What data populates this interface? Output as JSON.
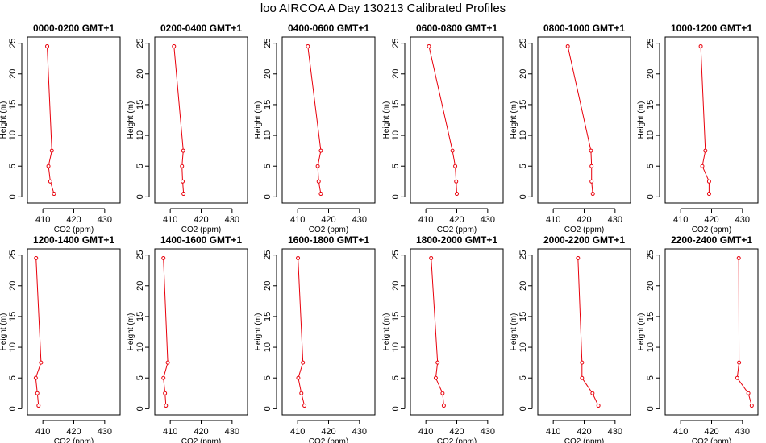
{
  "title": "loo AIRCOA A  Day 130213  Calibrated Profiles",
  "chart_data": {
    "type": "line",
    "title": "loo AIRCOA A  Day 130213  Calibrated Profiles",
    "xlabel": "CO2 (ppm)",
    "ylabel": "Height (m)",
    "xlim": [
      405,
      435
    ],
    "ylim": [
      -1,
      26
    ],
    "x_ticks": [
      410,
      420,
      430
    ],
    "y_ticks": [
      0,
      5,
      10,
      15,
      20,
      25
    ],
    "line_color": "#e8000b",
    "grid": false,
    "panels": [
      {
        "title": "0000-0200 GMT+1",
        "points": [
          {
            "co2": 411.4,
            "height": 24.5
          },
          {
            "co2": 412.9,
            "height": 7.5
          },
          {
            "co2": 411.8,
            "height": 5.0
          },
          {
            "co2": 412.4,
            "height": 2.5
          },
          {
            "co2": 413.6,
            "height": 0.5
          }
        ]
      },
      {
        "title": "0200-0400 GMT+1",
        "points": [
          {
            "co2": 411.2,
            "height": 24.5
          },
          {
            "co2": 414.2,
            "height": 7.5
          },
          {
            "co2": 413.8,
            "height": 5.0
          },
          {
            "co2": 414.0,
            "height": 2.5
          },
          {
            "co2": 414.3,
            "height": 0.5
          }
        ]
      },
      {
        "title": "0400-0600 GMT+1",
        "points": [
          {
            "co2": 413.3,
            "height": 24.5
          },
          {
            "co2": 417.5,
            "height": 7.5
          },
          {
            "co2": 416.5,
            "height": 5.0
          },
          {
            "co2": 416.8,
            "height": 2.5
          },
          {
            "co2": 417.5,
            "height": 0.5
          }
        ]
      },
      {
        "title": "0600-0800 GMT+1",
        "points": [
          {
            "co2": 411.0,
            "height": 24.5
          },
          {
            "co2": 418.6,
            "height": 7.5
          },
          {
            "co2": 419.5,
            "height": 5.0
          },
          {
            "co2": 419.8,
            "height": 2.5
          },
          {
            "co2": 420.0,
            "height": 0.5
          }
        ]
      },
      {
        "title": "0800-1000 GMT+1",
        "points": [
          {
            "co2": 414.7,
            "height": 24.5
          },
          {
            "co2": 422.2,
            "height": 7.5
          },
          {
            "co2": 422.4,
            "height": 5.0
          },
          {
            "co2": 422.4,
            "height": 2.5
          },
          {
            "co2": 422.8,
            "height": 0.5
          }
        ]
      },
      {
        "title": "1000-1200 GMT+1",
        "points": [
          {
            "co2": 416.5,
            "height": 24.5
          },
          {
            "co2": 418.0,
            "height": 7.5
          },
          {
            "co2": 417.0,
            "height": 5.0
          },
          {
            "co2": 419.2,
            "height": 2.5
          },
          {
            "co2": 419.2,
            "height": 0.5
          }
        ]
      },
      {
        "title": "1200-1400 GMT+1",
        "points": [
          {
            "co2": 407.8,
            "height": 24.5
          },
          {
            "co2": 409.4,
            "height": 7.5
          },
          {
            "co2": 407.7,
            "height": 5.0
          },
          {
            "co2": 408.2,
            "height": 2.5
          },
          {
            "co2": 408.6,
            "height": 0.5
          }
        ]
      },
      {
        "title": "1400-1600 GMT+1",
        "points": [
          {
            "co2": 407.8,
            "height": 24.5
          },
          {
            "co2": 409.2,
            "height": 7.5
          },
          {
            "co2": 407.8,
            "height": 5.0
          },
          {
            "co2": 408.3,
            "height": 2.5
          },
          {
            "co2": 408.6,
            "height": 0.5
          }
        ]
      },
      {
        "title": "1600-1800 GMT+1",
        "points": [
          {
            "co2": 410.1,
            "height": 24.5
          },
          {
            "co2": 411.7,
            "height": 7.5
          },
          {
            "co2": 410.2,
            "height": 5.0
          },
          {
            "co2": 411.2,
            "height": 2.5
          },
          {
            "co2": 412.2,
            "height": 0.5
          }
        ]
      },
      {
        "title": "1800-2000 GMT+1",
        "points": [
          {
            "co2": 411.7,
            "height": 24.5
          },
          {
            "co2": 413.8,
            "height": 7.5
          },
          {
            "co2": 413.2,
            "height": 5.0
          },
          {
            "co2": 415.4,
            "height": 2.5
          },
          {
            "co2": 415.8,
            "height": 0.5
          }
        ]
      },
      {
        "title": "2000-2200 GMT+1",
        "points": [
          {
            "co2": 418.0,
            "height": 24.5
          },
          {
            "co2": 419.3,
            "height": 7.5
          },
          {
            "co2": 419.3,
            "height": 5.0
          },
          {
            "co2": 422.7,
            "height": 2.5
          },
          {
            "co2": 424.6,
            "height": 0.5
          }
        ]
      },
      {
        "title": "2200-2400 GMT+1",
        "points": [
          {
            "co2": 428.8,
            "height": 24.5
          },
          {
            "co2": 428.9,
            "height": 7.5
          },
          {
            "co2": 428.3,
            "height": 5.0
          },
          {
            "co2": 431.9,
            "height": 2.5
          },
          {
            "co2": 433.0,
            "height": 0.5
          }
        ]
      }
    ]
  }
}
